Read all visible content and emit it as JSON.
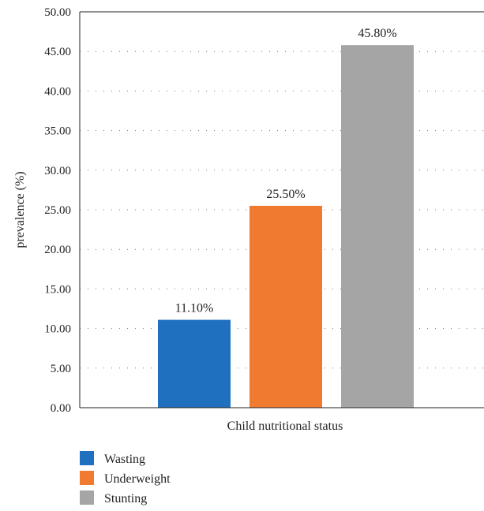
{
  "chart_data": {
    "type": "bar",
    "xlabel": "Child nutritional status",
    "ylabel": "prevalence (%)",
    "ylim": [
      0,
      50
    ],
    "yticks": [
      "0.00",
      "5.00",
      "10.00",
      "15.00",
      "20.00",
      "25.00",
      "30.00",
      "35.00",
      "40.00",
      "45.00",
      "50.00"
    ],
    "grid": "dotted horizontal",
    "legend_position": "bottom-left",
    "series": [
      {
        "name": "Wasting",
        "value": 11.1,
        "label": "11.10%",
        "color": "#2070c0"
      },
      {
        "name": "Underweight",
        "value": 25.5,
        "label": "25.50%",
        "color": "#f07a30"
      },
      {
        "name": "Stunting",
        "value": 45.8,
        "label": "45.80%",
        "color": "#a5a5a5"
      }
    ]
  }
}
